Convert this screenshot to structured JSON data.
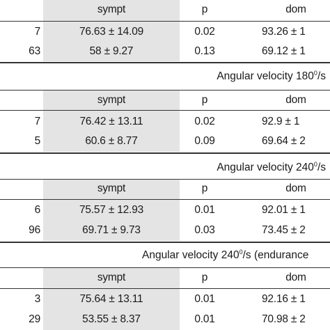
{
  "sections": [
    {
      "title": "",
      "title_unit": "",
      "title_tail": "",
      "header": {
        "sympt": "sympt",
        "p": "p",
        "dom": "dom"
      },
      "rows": [
        {
          "lead": "7",
          "sympt": "76.63 ± 14.09",
          "p": "0.02",
          "dom": "93.26 ± 1"
        },
        {
          "lead": "63",
          "sympt": "58 ± 9.27",
          "p": "0.13",
          "dom": "69.12 ± 1"
        }
      ]
    },
    {
      "title": "Angular velocity 180",
      "title_unit": "0",
      "title_tail": "/s",
      "header": {
        "sympt": "sympt",
        "p": "p",
        "dom": "dom"
      },
      "rows": [
        {
          "lead": "7",
          "sympt": "76.42 ± 13.11",
          "p": "0.02",
          "dom": "92.9 ± 1"
        },
        {
          "lead": "5",
          "sympt": "60.6 ± 8.77",
          "p": "0.09",
          "dom": "69.64 ± 2"
        }
      ]
    },
    {
      "title": "Angular velocity 240",
      "title_unit": "0",
      "title_tail": "/s",
      "header": {
        "sympt": "sympt",
        "p": "p",
        "dom": "dom"
      },
      "rows": [
        {
          "lead": "6",
          "sympt": "75.57 ± 12.93",
          "p": "0.01",
          "dom": "92.01 ± 1"
        },
        {
          "lead": "96",
          "sympt": "69.71 ± 9.73",
          "p": "0.03",
          "dom": "73.45 ± 2"
        }
      ]
    },
    {
      "title": "Angular velocity 240",
      "title_unit": "0",
      "title_tail": "/s (endurance",
      "header": {
        "sympt": "sympt",
        "p": "p",
        "dom": "dom"
      },
      "rows": [
        {
          "lead": "3",
          "sympt": "75.64 ± 13.11",
          "p": "0.01",
          "dom": "92.16 ± 1"
        },
        {
          "lead": "29",
          "sympt": "53.55 ± 8.37",
          "p": "0.01",
          "dom": "70.98 ± 2"
        }
      ]
    }
  ]
}
